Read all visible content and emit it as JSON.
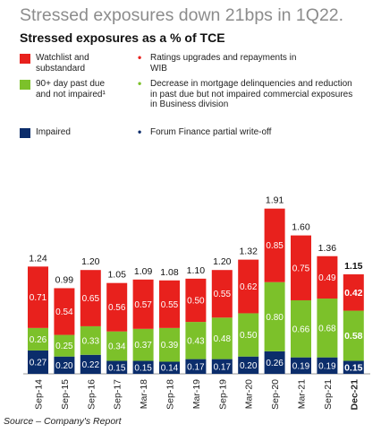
{
  "header": {
    "headline": "Stressed exposures down 21bps in 1Q22.",
    "subtitle": "Stressed exposures as a % of TCE"
  },
  "legend": [
    {
      "label": "Watchlist and substandard",
      "color": "#e8211d",
      "note_bullet": "•",
      "note_color": "#e8211d",
      "note": "Ratings upgrades and repayments in WIB"
    },
    {
      "label": "90+ day past due and not impaired¹",
      "color": "#7cc12a",
      "note_bullet": "•",
      "note_color": "#7cc12a",
      "note": "Decrease in mortgage delinquencies and reduction in past due but not impaired commercial exposures in Business division"
    },
    {
      "label": "Impaired",
      "color": "#0b2d6b",
      "note_bullet": "•",
      "note_color": "#0b2d6b",
      "note": "Forum Finance partial write-off"
    }
  ],
  "source": "Source – Company's Report",
  "chart_data": {
    "type": "bar",
    "stacked": true,
    "categories": [
      "Sep-14",
      "Sep-15",
      "Sep-16",
      "Sep-17",
      "Mar-18",
      "Sep-18",
      "Mar-19",
      "Sep-19",
      "Mar-20",
      "Sep-20",
      "Mar-21",
      "Sep-21",
      "Dec-21"
    ],
    "series": [
      {
        "name": "Impaired",
        "color": "#0b2d6b",
        "values": [
          0.27,
          0.2,
          0.22,
          0.15,
          0.15,
          0.14,
          0.17,
          0.17,
          0.2,
          0.26,
          0.19,
          0.19,
          0.15
        ],
        "labels": [
          "0.27",
          "0.20",
          "0.22",
          "0.15",
          "0.15",
          "0.14",
          "0.17",
          "0.17",
          "0.20",
          "0.26",
          "0.19",
          "0.19",
          "0.15"
        ]
      },
      {
        "name": "90+ day past due and not impaired¹",
        "color": "#7cc12a",
        "values": [
          0.26,
          0.25,
          0.33,
          0.34,
          0.37,
          0.39,
          0.43,
          0.48,
          0.5,
          0.8,
          0.66,
          0.68,
          0.58
        ],
        "labels": [
          "0.26",
          "0.25",
          "0.33",
          "0.34",
          "0.37",
          "0.39",
          "0.43",
          "0.48",
          "0.50",
          "0.80",
          "0.66",
          "0.68",
          "0.58"
        ]
      },
      {
        "name": "Watchlist and substandard",
        "color": "#e8211d",
        "values": [
          0.71,
          0.54,
          0.65,
          0.56,
          0.57,
          0.55,
          0.5,
          0.55,
          0.62,
          0.85,
          0.75,
          0.49,
          0.42
        ],
        "labels": [
          "0.71",
          "0.54",
          "0.65",
          "0.56",
          "0.57",
          "0.55",
          "0.50",
          "0.55",
          "0.62",
          "0.85",
          "0.75",
          "0.49",
          "0.42"
        ]
      }
    ],
    "totals": [
      1.24,
      0.99,
      1.2,
      1.05,
      1.09,
      1.08,
      1.1,
      1.2,
      1.32,
      1.91,
      1.6,
      1.36,
      1.15
    ],
    "total_labels": [
      "1.24",
      "0.99",
      "1.20",
      "1.05",
      "1.09",
      "1.08",
      "1.10",
      "1.20",
      "1.32",
      "1.91",
      "1.60",
      "1.36",
      "1.15"
    ],
    "highlight_index": 12,
    "ylim": [
      0,
      2.0
    ],
    "grid": false,
    "legend_position": "top-left"
  }
}
